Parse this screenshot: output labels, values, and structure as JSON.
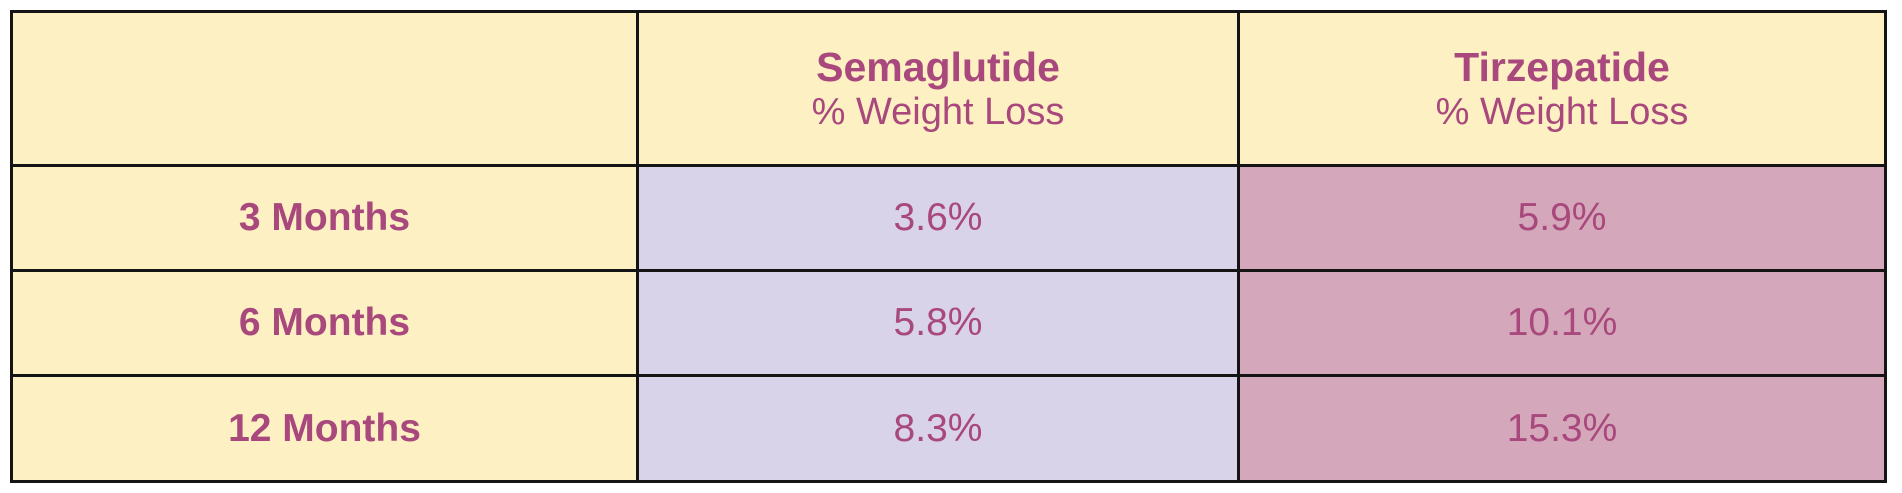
{
  "table": {
    "columns": [
      {
        "title": "Semaglutide",
        "subtitle": "% Weight Loss"
      },
      {
        "title": "Tirzepatide",
        "subtitle": "% Weight Loss"
      }
    ],
    "rows": [
      {
        "label": "3 Months",
        "values": [
          "3.6%",
          "5.9%"
        ]
      },
      {
        "label": "6 Months",
        "values": [
          "5.8%",
          "10.1%"
        ]
      },
      {
        "label": "12 Months",
        "values": [
          "8.3%",
          "15.3%"
        ]
      }
    ]
  }
}
